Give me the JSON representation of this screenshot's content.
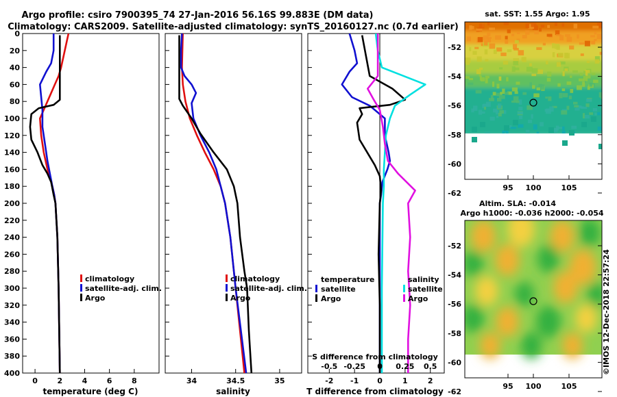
{
  "title": {
    "line1": "Argo profile: csiro 7900395_74 27-Jan-2016 56.16S 99.883E (DM data)",
    "line2": "Climatology: CARS2009. Satellite-adjusted climatology: synTS_20160127.nc (0.7d earlier)"
  },
  "colors": {
    "climatology": "#e01010",
    "satellite": "#1010d0",
    "argo": "#000000",
    "sal_sat": "#00e0e0",
    "sal_diff": "#e010e0"
  },
  "depth_ticks": [
    "0",
    "20",
    "40",
    "60",
    "80",
    "100",
    "120",
    "140",
    "160",
    "180",
    "200",
    "220",
    "240",
    "260",
    "280",
    "300",
    "320",
    "340",
    "360",
    "380",
    "400"
  ],
  "chart_data": [
    {
      "type": "line",
      "id": "temperature",
      "xlabel": "temperature (deg C)",
      "xlim": [
        -1,
        10
      ],
      "ylim": [
        0,
        400
      ],
      "xticks": [
        "0",
        "2",
        "4",
        "6",
        "8"
      ],
      "xtick_values": [
        0,
        2,
        4,
        6,
        8
      ],
      "legend": [
        "climatology",
        "satellite-adj. clim.",
        "Argo"
      ],
      "series": [
        {
          "name": "climatology",
          "color": "#e01010",
          "points": [
            [
              2.7,
              0
            ],
            [
              2.4,
              20
            ],
            [
              2.1,
              40
            ],
            [
              1.9,
              50
            ],
            [
              1.6,
              60
            ],
            [
              1.0,
              80
            ],
            [
              0.4,
              100
            ],
            [
              0.5,
              120
            ],
            [
              0.7,
              140
            ],
            [
              1.0,
              160
            ],
            [
              1.2,
              170
            ],
            [
              1.4,
              180
            ],
            [
              1.55,
              190
            ],
            [
              1.65,
              200
            ],
            [
              1.8,
              240
            ],
            [
              1.9,
              300
            ],
            [
              2.0,
              400
            ]
          ]
        },
        {
          "name": "satellite-adj. clim.",
          "color": "#1010d0",
          "points": [
            [
              1.5,
              0
            ],
            [
              1.5,
              20
            ],
            [
              1.3,
              35
            ],
            [
              0.9,
              45
            ],
            [
              0.4,
              60
            ],
            [
              0.5,
              75
            ],
            [
              0.6,
              90
            ],
            [
              0.6,
              110
            ],
            [
              0.8,
              130
            ],
            [
              1.0,
              150
            ],
            [
              1.2,
              165
            ],
            [
              1.4,
              180
            ],
            [
              1.55,
              190
            ],
            [
              1.65,
              200
            ],
            [
              1.8,
              240
            ],
            [
              1.9,
              300
            ],
            [
              2.0,
              400
            ]
          ]
        },
        {
          "name": "Argo",
          "color": "#000000",
          "points": [
            [
              2.0,
              2
            ],
            [
              2.0,
              78
            ],
            [
              1.5,
              84
            ],
            [
              0.3,
              88
            ],
            [
              -0.3,
              95
            ],
            [
              -0.4,
              110
            ],
            [
              -0.3,
              125
            ],
            [
              0.2,
              140
            ],
            [
              0.6,
              155
            ],
            [
              1.0,
              165
            ],
            [
              1.3,
              175
            ],
            [
              1.5,
              190
            ],
            [
              1.65,
              200
            ],
            [
              1.8,
              240
            ],
            [
              1.9,
              300
            ],
            [
              2.0,
              400
            ]
          ]
        }
      ]
    },
    {
      "type": "line",
      "id": "salinity",
      "xlabel": "salinity",
      "xlim": [
        33.7,
        35.25
      ],
      "ylim": [
        0,
        400
      ],
      "xticks": [
        "34",
        "34.5",
        "35"
      ],
      "xtick_values": [
        34,
        34.5,
        35
      ],
      "legend": [
        "climatology",
        "satellite-adj. clim.",
        "Argo"
      ],
      "series": [
        {
          "name": "climatology",
          "color": "#e01010",
          "points": [
            [
              33.9,
              0
            ],
            [
              33.89,
              40
            ],
            [
              33.9,
              60
            ],
            [
              33.93,
              80
            ],
            [
              33.98,
              100
            ],
            [
              34.06,
              120
            ],
            [
              34.15,
              140
            ],
            [
              34.25,
              160
            ],
            [
              34.33,
              180
            ],
            [
              34.38,
              200
            ],
            [
              34.44,
              240
            ],
            [
              34.5,
              300
            ],
            [
              34.55,
              350
            ],
            [
              34.6,
              400
            ]
          ]
        },
        {
          "name": "satellite-adj. clim.",
          "color": "#1010d0",
          "points": [
            [
              33.89,
              0
            ],
            [
              33.88,
              20
            ],
            [
              33.88,
              40
            ],
            [
              33.92,
              50
            ],
            [
              34.0,
              60
            ],
            [
              34.05,
              70
            ],
            [
              34.0,
              82
            ],
            [
              34.02,
              100
            ],
            [
              34.1,
              120
            ],
            [
              34.2,
              140
            ],
            [
              34.28,
              160
            ],
            [
              34.33,
              180
            ],
            [
              34.38,
              200
            ],
            [
              34.44,
              240
            ],
            [
              34.5,
              300
            ],
            [
              34.56,
              350
            ],
            [
              34.62,
              400
            ]
          ]
        },
        {
          "name": "Argo",
          "color": "#000000",
          "points": [
            [
              33.86,
              2
            ],
            [
              33.86,
              77
            ],
            [
              33.9,
              85
            ],
            [
              34.0,
              100
            ],
            [
              34.1,
              118
            ],
            [
              34.25,
              140
            ],
            [
              34.4,
              160
            ],
            [
              34.48,
              180
            ],
            [
              34.52,
              200
            ],
            [
              34.55,
              240
            ],
            [
              34.6,
              280
            ],
            [
              34.63,
              300
            ],
            [
              34.65,
              350
            ],
            [
              34.68,
              400
            ]
          ]
        }
      ]
    },
    {
      "type": "line",
      "id": "difference",
      "xlabel": "T difference from climatology",
      "xlabel2": "S difference from climatology",
      "xlim": [
        -2.85,
        2.55
      ],
      "ylim": [
        0,
        400
      ],
      "xticks": [
        "-2",
        "-1",
        "0",
        "1",
        "2"
      ],
      "xtick_values": [
        -2,
        -1,
        0,
        1,
        2
      ],
      "xticks2": [
        "-0.5",
        "-0.25",
        "0",
        "0.25",
        "0.5"
      ],
      "xtick2_values": [
        -0.5,
        -0.25,
        0,
        0.25,
        0.5
      ],
      "legend_left_title": "temperature",
      "legend_right_title": "salinity",
      "legend_left": [
        "satellite",
        "Argo"
      ],
      "legend_right": [
        "satellite",
        "Argo"
      ],
      "series": [
        {
          "name": "temperature satellite",
          "color": "#1010d0",
          "points": [
            [
              -1.2,
              0
            ],
            [
              -1.0,
              20
            ],
            [
              -0.9,
              35
            ],
            [
              -1.2,
              45
            ],
            [
              -1.5,
              60
            ],
            [
              -1.1,
              75
            ],
            [
              -0.4,
              85
            ],
            [
              0.2,
              100
            ],
            [
              0.2,
              120
            ],
            [
              0.35,
              140
            ],
            [
              0.4,
              150
            ],
            [
              0.3,
              160
            ],
            [
              0.1,
              175
            ],
            [
              0.05,
              190
            ],
            [
              0.0,
              200
            ],
            [
              0.0,
              300
            ],
            [
              0.0,
              400
            ]
          ]
        },
        {
          "name": "temperature Argo",
          "color": "#000000",
          "points": [
            [
              -0.7,
              2
            ],
            [
              -0.4,
              50
            ],
            [
              0.5,
              65
            ],
            [
              1.0,
              78
            ],
            [
              0.4,
              84
            ],
            [
              -0.8,
              88
            ],
            [
              -0.7,
              95
            ],
            [
              -0.9,
              105
            ],
            [
              -0.8,
              125
            ],
            [
              -0.5,
              140
            ],
            [
              -0.2,
              155
            ],
            [
              0.0,
              168
            ],
            [
              0.05,
              185
            ],
            [
              0.0,
              200
            ],
            [
              -0.05,
              260
            ],
            [
              0.0,
              320
            ],
            [
              0.0,
              400
            ]
          ]
        },
        {
          "name": "salinity satellite",
          "color": "#00e0e0",
          "points": [
            [
              -0.04,
              0
            ],
            [
              -0.02,
              20
            ],
            [
              0.02,
              40
            ],
            [
              0.45,
              60
            ],
            [
              0.3,
              72
            ],
            [
              0.15,
              85
            ],
            [
              0.1,
              100
            ],
            [
              0.06,
              120
            ],
            [
              0.05,
              140
            ],
            [
              0.04,
              160
            ],
            [
              0.04,
              180
            ],
            [
              0.03,
              200
            ],
            [
              0.02,
              300
            ],
            [
              0.02,
              400
            ]
          ]
        },
        {
          "name": "salinity Argo",
          "color": "#e010e0",
          "points": [
            [
              -0.02,
              0
            ],
            [
              -0.02,
              50
            ],
            [
              -0.12,
              65
            ],
            [
              -0.06,
              78
            ],
            [
              0.0,
              90
            ],
            [
              0.03,
              110
            ],
            [
              0.05,
              130
            ],
            [
              0.08,
              150
            ],
            [
              0.18,
              165
            ],
            [
              0.35,
              185
            ],
            [
              0.28,
              200
            ],
            [
              0.3,
              240
            ],
            [
              0.28,
              280
            ],
            [
              0.3,
              320
            ],
            [
              0.28,
              360
            ],
            [
              0.28,
              400
            ]
          ]
        }
      ]
    }
  ],
  "maps": {
    "sst": {
      "title": "sat. SST: 1.55 Argo: 1.95",
      "yticks": [
        "-52",
        "-54",
        "-56",
        "-58",
        "-60",
        "-62"
      ],
      "xticks": [
        "95",
        "100",
        "105"
      ]
    },
    "sla": {
      "title1": "Altim. SLA: -0.014",
      "title2": "Argo h1000: -0.036 h2000: -0.054",
      "yticks": [
        "-52",
        "-54",
        "-56",
        "-58",
        "-60",
        "-62"
      ],
      "xticks": [
        "95",
        "100",
        "105"
      ]
    }
  },
  "credit": "©IMOS 12-Dec-2018 22:57:24"
}
